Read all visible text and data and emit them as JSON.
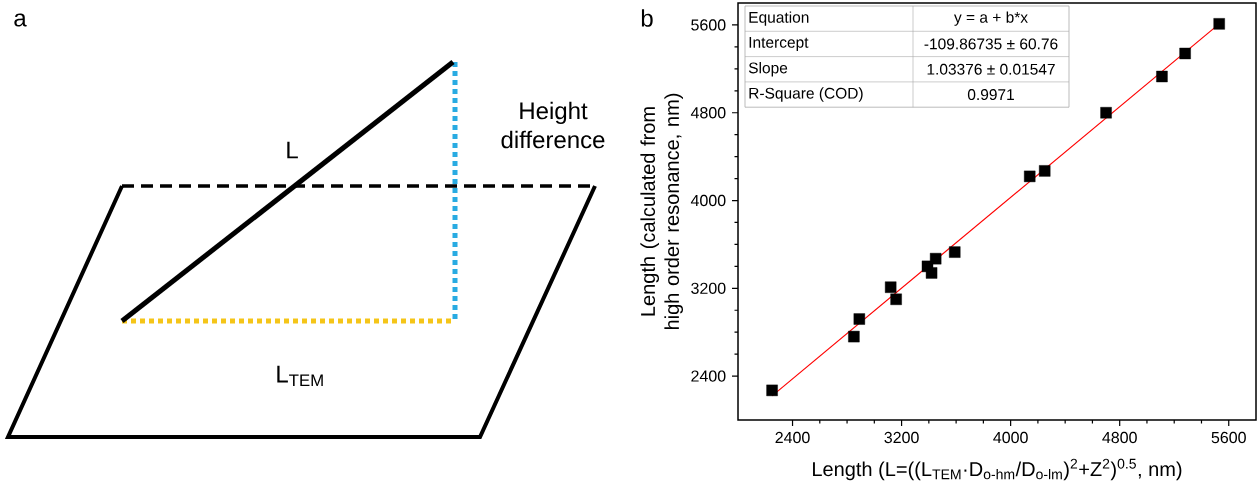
{
  "chart_data": [
    {
      "type": "other",
      "title": "a",
      "annotations": [
        "L",
        "Height difference",
        "L$_{TEM}$"
      ]
    },
    {
      "type": "scatter",
      "title": "b",
      "xlabel": "Length (L=((L$_{TEM}$·D$_{o-hm}$/D$_{o-lm}$)$^{2}$+Z$^{2}$)$^{0.5}$, nm)",
      "ylabel": "Length (calculated from high order resonance, nm)",
      "xlim": [
        2000,
        5800
      ],
      "ylim": [
        2000,
        5800
      ],
      "xticks": [
        2400,
        3200,
        4000,
        4800,
        5600
      ],
      "yticks": [
        2400,
        3200,
        4000,
        4800,
        5600
      ],
      "marker": "square",
      "series": [
        {
          "type": "scatter",
          "color": "#000000",
          "x": [
            2250,
            2850,
            2890,
            3120,
            3160,
            3390,
            3420,
            3450,
            3590,
            4140,
            4250,
            4700,
            5110,
            5280,
            5530
          ],
          "values": [
            2270,
            2760,
            2920,
            3210,
            3100,
            3400,
            3340,
            3470,
            3530,
            4220,
            4270,
            4800,
            5130,
            5340,
            5610
          ]
        },
        {
          "type": "line",
          "color": "#ff0000",
          "marker": "none",
          "x": [
            2250,
            5530
          ],
          "values": [
            2220,
            5610
          ]
        }
      ],
      "annotations": [
        "Equation",
        "y = a + b*x",
        "Intercept",
        "-109.86735 ± 60.76",
        "Slope",
        "1.03376 ± 0.01547",
        "R-Square (COD)",
        "0.9971"
      ]
    }
  ]
}
